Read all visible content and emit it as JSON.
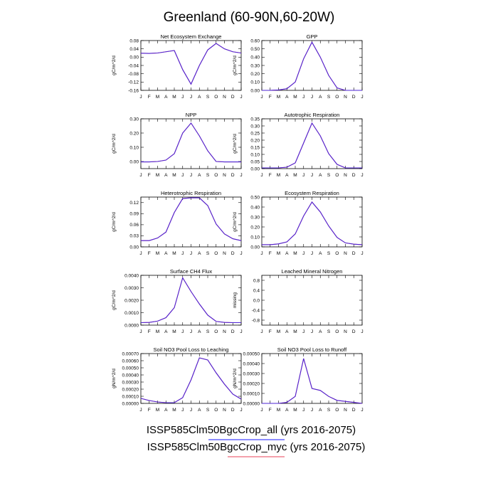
{
  "title": "Greenland (60-90N,60-20W)",
  "months": [
    "J",
    "F",
    "M",
    "A",
    "M",
    "J",
    "J",
    "A",
    "S",
    "O",
    "N",
    "D",
    "J"
  ],
  "legend": [
    {
      "label": "ISSP585Clm50BgcCrop_all (yrs 2016-2075)",
      "color": "#1a1aff"
    },
    {
      "label": "ISSP585Clm50BgcCrop_myc (yrs 2016-2075)",
      "color": "#e8435a"
    }
  ],
  "chart_data": [
    {
      "type": "line",
      "title": "Net Ecosystem Exchange",
      "ylabel": "gC/m^2/d",
      "ylim": [
        -0.16,
        0.08
      ],
      "yticks": [
        "0.08",
        "0.04",
        "0.00",
        "-0.04",
        "-0.08",
        "-0.12",
        "-0.16"
      ],
      "yvals": [
        0.08,
        0.04,
        0.0,
        -0.04,
        -0.08,
        -0.12,
        -0.16
      ],
      "series": [
        {
          "values": [
            0.019,
            0.018,
            0.02,
            0.026,
            0.032,
            -0.06,
            -0.13,
            -0.04,
            0.035,
            0.066,
            0.04,
            0.026,
            0.02
          ]
        },
        {
          "values": [
            0.019,
            0.018,
            0.02,
            0.026,
            0.032,
            -0.06,
            -0.13,
            -0.04,
            0.035,
            0.066,
            0.04,
            0.026,
            0.02
          ]
        }
      ]
    },
    {
      "type": "line",
      "title": "GPP",
      "ylabel": "gC/m^2/d",
      "ylim": [
        0,
        0.6
      ],
      "yticks": [
        "0.60",
        "0.50",
        "0.40",
        "0.30",
        "0.20",
        "0.10",
        "0.00"
      ],
      "yvals": [
        0.6,
        0.5,
        0.4,
        0.3,
        0.2,
        0.1,
        0.0
      ],
      "series": [
        {
          "values": [
            0.0,
            0.0,
            0.005,
            0.02,
            0.1,
            0.38,
            0.58,
            0.4,
            0.18,
            0.03,
            0.0,
            0.0,
            0.0
          ]
        },
        {
          "values": [
            0.0,
            0.0,
            0.005,
            0.02,
            0.1,
            0.38,
            0.58,
            0.4,
            0.18,
            0.03,
            0.0,
            0.0,
            0.0
          ]
        }
      ]
    },
    {
      "type": "line",
      "title": "NPP",
      "ylabel": "gC/m^2/d",
      "ylim": [
        -0.05,
        0.3
      ],
      "yticks": [
        "0.30",
        "0.20",
        "0.10",
        "0.00"
      ],
      "yvals": [
        0.3,
        0.2,
        0.1,
        0.0
      ],
      "series": [
        {
          "values": [
            -0.003,
            -0.003,
            0.0,
            0.01,
            0.055,
            0.2,
            0.27,
            0.18,
            0.075,
            0.0,
            -0.003,
            -0.003,
            -0.003
          ]
        },
        {
          "values": [
            -0.003,
            -0.003,
            0.0,
            0.01,
            0.055,
            0.2,
            0.27,
            0.18,
            0.075,
            0.0,
            -0.003,
            -0.003,
            -0.003
          ]
        }
      ]
    },
    {
      "type": "line",
      "title": "Autotrophic Respiration",
      "ylabel": "gC/m^2/d",
      "ylim": [
        0,
        0.35
      ],
      "yticks": [
        "0.35",
        "0.30",
        "0.25",
        "0.20",
        "0.15",
        "0.10",
        "0.05",
        "0.00"
      ],
      "yvals": [
        0.35,
        0.3,
        0.25,
        0.2,
        0.15,
        0.1,
        0.05,
        0.0
      ],
      "series": [
        {
          "values": [
            0.005,
            0.005,
            0.005,
            0.01,
            0.04,
            0.18,
            0.32,
            0.23,
            0.105,
            0.03,
            0.005,
            0.005,
            0.005
          ]
        },
        {
          "values": [
            0.005,
            0.005,
            0.005,
            0.01,
            0.04,
            0.18,
            0.32,
            0.23,
            0.105,
            0.03,
            0.005,
            0.005,
            0.005
          ]
        }
      ]
    },
    {
      "type": "line",
      "title": "Heterotrophic Respiration",
      "ylabel": "gC/m^2/d",
      "ylim": [
        0,
        0.135
      ],
      "yticks": [
        "0.12",
        "0.09",
        "0.06",
        "0.03",
        "0.00"
      ],
      "yvals": [
        0.12,
        0.09,
        0.06,
        0.03,
        0.0
      ],
      "series": [
        {
          "values": [
            0.017,
            0.017,
            0.024,
            0.04,
            0.093,
            0.131,
            0.133,
            0.133,
            0.112,
            0.062,
            0.035,
            0.022,
            0.017
          ]
        },
        {
          "values": [
            0.017,
            0.017,
            0.024,
            0.04,
            0.093,
            0.131,
            0.133,
            0.133,
            0.112,
            0.062,
            0.035,
            0.022,
            0.017
          ]
        }
      ]
    },
    {
      "type": "line",
      "title": "Ecosystem Respiration",
      "ylabel": "gC/m^2/d",
      "ylim": [
        0,
        0.5
      ],
      "yticks": [
        "0.50",
        "0.40",
        "0.30",
        "0.20",
        "0.10",
        "0.00"
      ],
      "yvals": [
        0.5,
        0.4,
        0.3,
        0.2,
        0.1,
        0.0
      ],
      "series": [
        {
          "values": [
            0.022,
            0.022,
            0.03,
            0.05,
            0.13,
            0.31,
            0.45,
            0.35,
            0.21,
            0.095,
            0.04,
            0.027,
            0.022
          ]
        },
        {
          "values": [
            0.022,
            0.022,
            0.03,
            0.05,
            0.13,
            0.31,
            0.45,
            0.35,
            0.21,
            0.095,
            0.04,
            0.027,
            0.022
          ]
        }
      ]
    },
    {
      "type": "line",
      "title": "Surface CH4 Flux",
      "ylabel": "gC/m^2/d",
      "ylim": [
        0,
        0.004
      ],
      "yticks": [
        "0.0040",
        "0.0030",
        "0.0020",
        "0.0010",
        "0.0000"
      ],
      "yvals": [
        0.004,
        0.003,
        0.002,
        0.001,
        0.0
      ],
      "series": [
        {
          "values": [
            0.0002,
            0.00022,
            0.00032,
            0.0006,
            0.0014,
            0.0038,
            0.0027,
            0.0017,
            0.0008,
            0.0003,
            0.00022,
            0.0002,
            0.0002
          ]
        },
        {
          "values": [
            0.0002,
            0.00022,
            0.00032,
            0.0006,
            0.0014,
            0.0038,
            0.0027,
            0.0017,
            0.0008,
            0.0003,
            0.00022,
            0.0002,
            0.0002
          ]
        }
      ]
    },
    {
      "type": "line",
      "title": "Leached Mineral Nitrogen",
      "ylabel": "missing",
      "ylim": [
        -1,
        1
      ],
      "yticks": [
        "0.8",
        "0.4",
        "0.0",
        "-0.4",
        "-0.8"
      ],
      "yvals": [
        0.8,
        0.4,
        0.0,
        -0.4,
        -0.8
      ],
      "series": []
    },
    {
      "type": "line",
      "title": "Soil NO3 Pool Loss to Leaching",
      "ylabel": "gN/m^2/d",
      "ylim": [
        0,
        0.0007
      ],
      "yticks": [
        "0.00070",
        "0.00060",
        "0.00050",
        "0.00040",
        "0.00030",
        "0.00020",
        "0.00010",
        "0.00000"
      ],
      "yvals": [
        0.0007,
        0.0006,
        0.0005,
        0.0004,
        0.0003,
        0.0002,
        0.0001,
        0.0
      ],
      "series": [
        {
          "values": [
            7e-05,
            4e-05,
            2e-05,
            1e-05,
            1e-05,
            8e-05,
            0.00033,
            0.00064,
            0.00061,
            0.00043,
            0.00027,
            0.00013,
            6e-05
          ]
        },
        {
          "values": [
            7e-05,
            4e-05,
            2e-05,
            1e-05,
            1e-05,
            8e-05,
            0.00033,
            0.00064,
            0.00061,
            0.00043,
            0.00027,
            0.00013,
            6e-05
          ]
        }
      ]
    },
    {
      "type": "line",
      "title": "Soil NO3 Pool Loss to Runoff",
      "ylabel": "gN/m^2/d",
      "ylim": [
        0,
        0.0005
      ],
      "yticks": [
        "0.00050",
        "0.00040",
        "0.00030",
        "0.00020",
        "0.00010",
        "0.00000"
      ],
      "yvals": [
        0.0005,
        0.0004,
        0.0003,
        0.0002,
        0.0001,
        0.0
      ],
      "series": [
        {
          "values": [
            0.0,
            0.0,
            0.0,
            1e-05,
            7e-05,
            0.00045,
            0.00015,
            0.00013,
            7e-05,
            3e-05,
            2e-05,
            1e-05,
            0.0
          ]
        },
        {
          "values": [
            0.0,
            0.0,
            0.0,
            1e-05,
            7e-05,
            0.00045,
            0.00015,
            0.00013,
            7e-05,
            3e-05,
            2e-05,
            1e-05,
            0.0
          ]
        }
      ]
    }
  ]
}
